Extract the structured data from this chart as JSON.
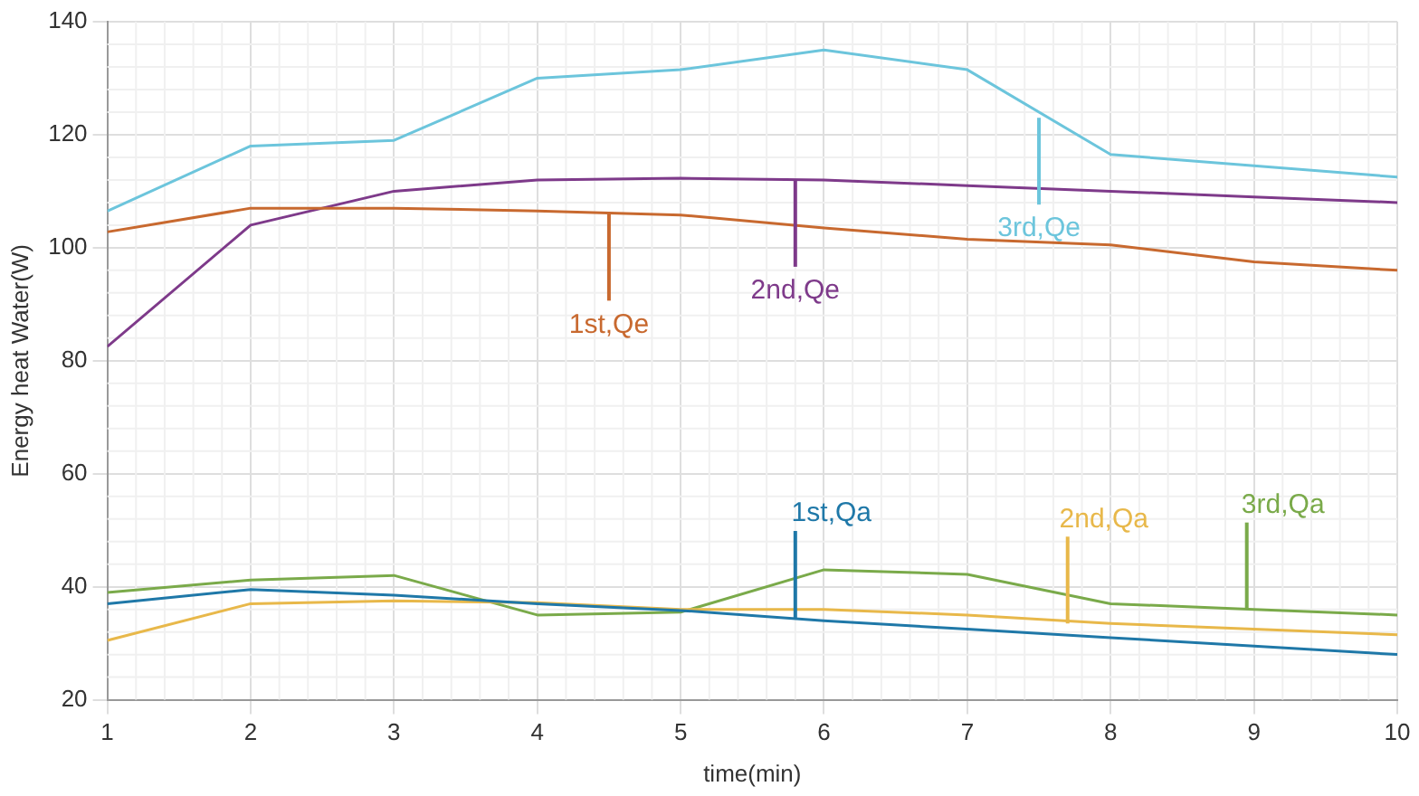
{
  "chart_data": {
    "type": "line",
    "xlabel": "time(min)",
    "ylabel": "Energy heat Water(W)",
    "x": [
      1,
      2,
      3,
      4,
      5,
      6,
      7,
      8,
      9,
      10
    ],
    "xlim": [
      1,
      10
    ],
    "xticks": [
      1,
      2,
      3,
      4,
      5,
      6,
      7,
      8,
      9,
      10
    ],
    "ylim": [
      20,
      140
    ],
    "yticks": [
      20,
      40,
      60,
      80,
      100,
      120,
      140
    ],
    "grid": true,
    "legend": false,
    "marker": "none",
    "line_style": "solid",
    "series": [
      {
        "color": "#c8692f",
        "values": [
          102.8,
          107,
          107,
          106.5,
          105.8,
          103.5,
          101.5,
          100.5,
          97.5,
          96
        ]
      },
      {
        "color": "#7e3a8a",
        "values": [
          82.5,
          104,
          110,
          112,
          112.3,
          112,
          111,
          110,
          109,
          108
        ]
      },
      {
        "color": "#6cc5dc",
        "values": [
          106.5,
          118,
          119,
          130,
          131.5,
          135,
          131.5,
          116.5,
          114.5,
          112.5
        ]
      },
      {
        "color": "#1f78a8",
        "values": [
          37,
          39.5,
          38.5,
          37,
          35.8,
          34,
          32.5,
          31,
          29.5,
          28
        ]
      },
      {
        "color": "#e8b84a",
        "values": [
          30.5,
          37,
          37.5,
          37.2,
          36,
          36,
          35,
          33.5,
          32.5,
          31.5
        ]
      },
      {
        "color": "#7aaa4a",
        "values": [
          39,
          41.2,
          42,
          35,
          35.5,
          43,
          42.2,
          37,
          36,
          35
        ]
      }
    ],
    "annotations": [
      {
        "text": "1st,Qe",
        "x": 4.5,
        "y": 106
      },
      {
        "text": "2nd,Qe",
        "x": 5.8,
        "y": 112
      },
      {
        "text": "3rd,Qe",
        "x": 7.5,
        "y": 123
      },
      {
        "text": "1st,Qa",
        "x": 5.8,
        "y": 34.5
      },
      {
        "text": "2nd,Qa",
        "x": 7.7,
        "y": 33.5
      },
      {
        "text": "3rd,Qa",
        "x": 8.95,
        "y": 36
      }
    ]
  }
}
